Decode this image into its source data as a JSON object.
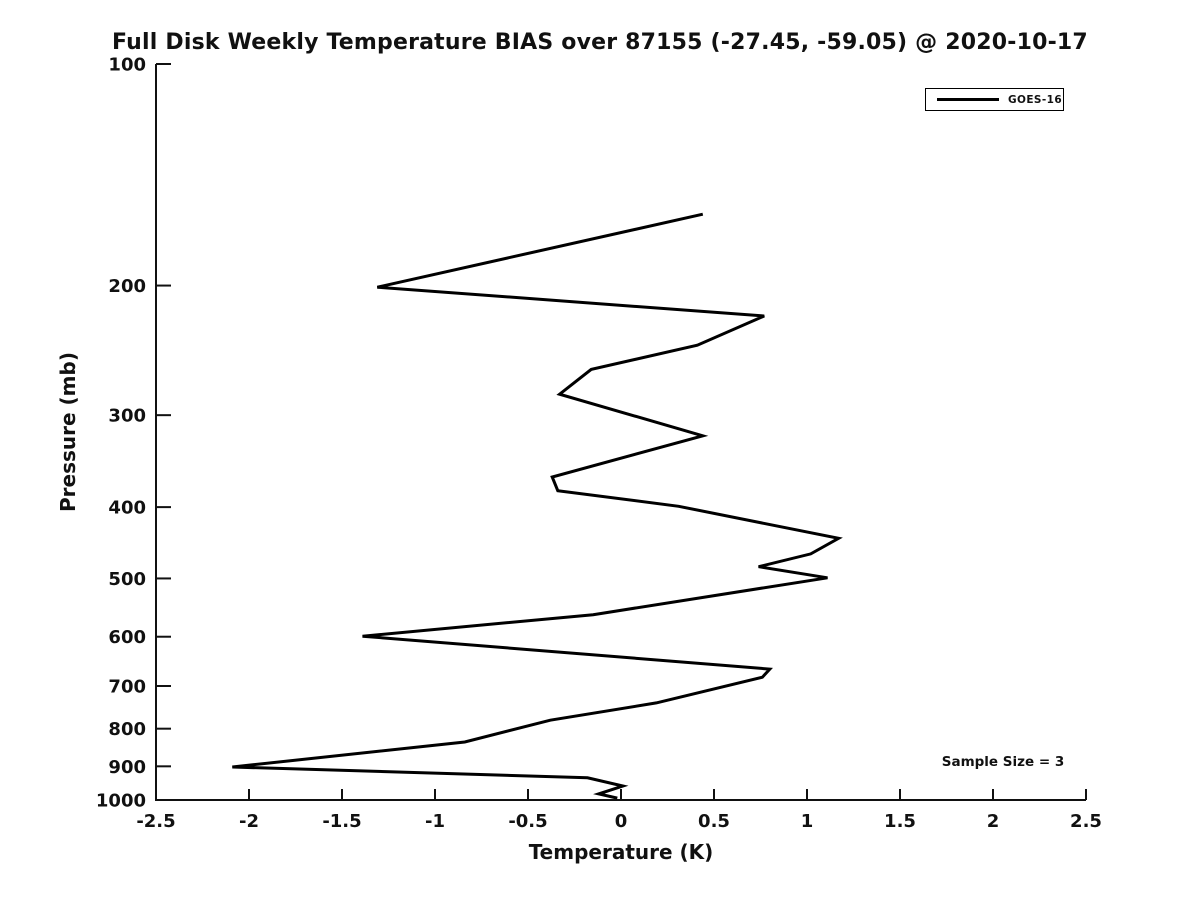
{
  "figure": {
    "background": "#ffffff"
  },
  "colors": {
    "line": "#000000",
    "axis": "#111111",
    "text": "#111111",
    "background": "#ffffff"
  },
  "chart_data": {
    "type": "line",
    "title": "Full Disk Weekly Temperature BIAS over 87155 (-27.45, -59.05) @ 2020-10-17",
    "xlabel": "Temperature (K)",
    "ylabel": "Pressure (mb)",
    "annotation": "Sample Size = 3",
    "x_scale": "linear",
    "y_scale": "log",
    "xlim": [
      -2.5,
      2.5
    ],
    "ylim": [
      1000,
      100
    ],
    "x_ticks": [
      -2.5,
      -2,
      -1.5,
      -1,
      -0.5,
      0,
      0.5,
      1,
      1.5,
      2,
      2.5
    ],
    "y_ticks": [
      100,
      200,
      300,
      400,
      500,
      600,
      700,
      800,
      900,
      1000
    ],
    "grid": false,
    "legend_position": "upper right",
    "series": [
      {
        "name": "GOES-16",
        "color": "#000000",
        "points": [
          {
            "p_mb": 160,
            "bias_k": 0.44
          },
          {
            "p_mb": 201,
            "bias_k": -1.31
          },
          {
            "p_mb": 220,
            "bias_k": 0.77
          },
          {
            "p_mb": 241,
            "bias_k": 0.41
          },
          {
            "p_mb": 260,
            "bias_k": -0.16
          },
          {
            "p_mb": 281,
            "bias_k": -0.33
          },
          {
            "p_mb": 320,
            "bias_k": 0.44
          },
          {
            "p_mb": 364,
            "bias_k": -0.37
          },
          {
            "p_mb": 380,
            "bias_k": -0.34
          },
          {
            "p_mb": 399,
            "bias_k": 0.31
          },
          {
            "p_mb": 441,
            "bias_k": 1.17
          },
          {
            "p_mb": 463,
            "bias_k": 1.02
          },
          {
            "p_mb": 482,
            "bias_k": 0.74
          },
          {
            "p_mb": 499,
            "bias_k": 1.11
          },
          {
            "p_mb": 560,
            "bias_k": -0.15
          },
          {
            "p_mb": 599,
            "bias_k": -1.39
          },
          {
            "p_mb": 664,
            "bias_k": 0.8
          },
          {
            "p_mb": 681,
            "bias_k": 0.76
          },
          {
            "p_mb": 738,
            "bias_k": 0.19
          },
          {
            "p_mb": 779,
            "bias_k": -0.38
          },
          {
            "p_mb": 834,
            "bias_k": -0.84
          },
          {
            "p_mb": 902,
            "bias_k": -2.09
          },
          {
            "p_mb": 933,
            "bias_k": -0.18
          },
          {
            "p_mb": 957,
            "bias_k": 0.01
          },
          {
            "p_mb": 981,
            "bias_k": -0.12
          },
          {
            "p_mb": 994,
            "bias_k": -0.02
          }
        ]
      }
    ]
  }
}
